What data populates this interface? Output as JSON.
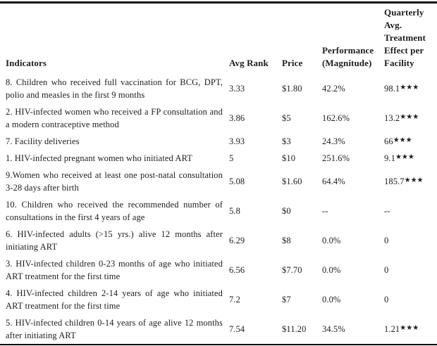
{
  "table": {
    "columns": [
      {
        "label": "Indicators"
      },
      {
        "label": "Avg Rank"
      },
      {
        "label": "Price"
      },
      {
        "label": "Performance (Magnitude)"
      },
      {
        "label": "Quarterly Avg. Treatment Effect per Facility"
      }
    ],
    "rows": [
      {
        "indicator": "8. Children who received full vaccination for BCG, DPT, polio and measles in the first 9 months",
        "avg_rank": "3.33",
        "price": "$1.80",
        "performance": "42.2%",
        "effect": "98.1",
        "stars": "★★★"
      },
      {
        "indicator": "2. HIV-infected women who received a FP consultation and a modern contraceptive method",
        "avg_rank": "3.86",
        "price": "$5",
        "performance": "162.6%",
        "effect": "13.2",
        "stars": "★★★"
      },
      {
        "indicator": "7. Facility deliveries",
        "avg_rank": "3.93",
        "price": "$3",
        "performance": "24.3%",
        "effect": "66",
        "stars": "★★★"
      },
      {
        "indicator": "1. HIV-infected pregnant women who initiated ART",
        "avg_rank": "5",
        "price": "$10",
        "performance": "251.6%",
        "effect": "9.1",
        "stars": "★★★"
      },
      {
        "indicator": "9.Women who received at least one post-natal consultation 3-28 days after birth",
        "avg_rank": "5.08",
        "price": "$1.60",
        "performance": "64.4%",
        "effect": "185.7",
        "stars": "★★★"
      },
      {
        "indicator": "10. Children who received the recommended number of consultations in the first 4 years of age",
        "avg_rank": "5.8",
        "price": "$0",
        "performance": "--",
        "effect": "--",
        "stars": ""
      },
      {
        "indicator": "6. HIV-infected adults (>15 yrs.) alive 12 months after initiating ART",
        "avg_rank": "6.29",
        "price": "$8",
        "performance": "0.0%",
        "effect": "0",
        "stars": ""
      },
      {
        "indicator": "3. HIV-infected children 0-23 months of age who initiated ART treatment for the first time",
        "avg_rank": "6.56",
        "price": "$7.70",
        "performance": "0.0%",
        "effect": "0",
        "stars": ""
      },
      {
        "indicator": "4. HIV-infected children 2-14 years of age who initiated ART treatment for the first time",
        "avg_rank": "7.2",
        "price": "$7",
        "performance": "0.0%",
        "effect": "0",
        "stars": ""
      },
      {
        "indicator": "5. HIV-infected children 0-14 years of age alive 12 months after initiating ART",
        "avg_rank": "7.54",
        "price": "$11.20",
        "performance": "34.5%",
        "effect": "1.21",
        "stars": "★★★"
      }
    ]
  },
  "colors": {
    "text": "#1d1d1d",
    "rule": "#0d0d0d",
    "background": "#ffffff"
  }
}
